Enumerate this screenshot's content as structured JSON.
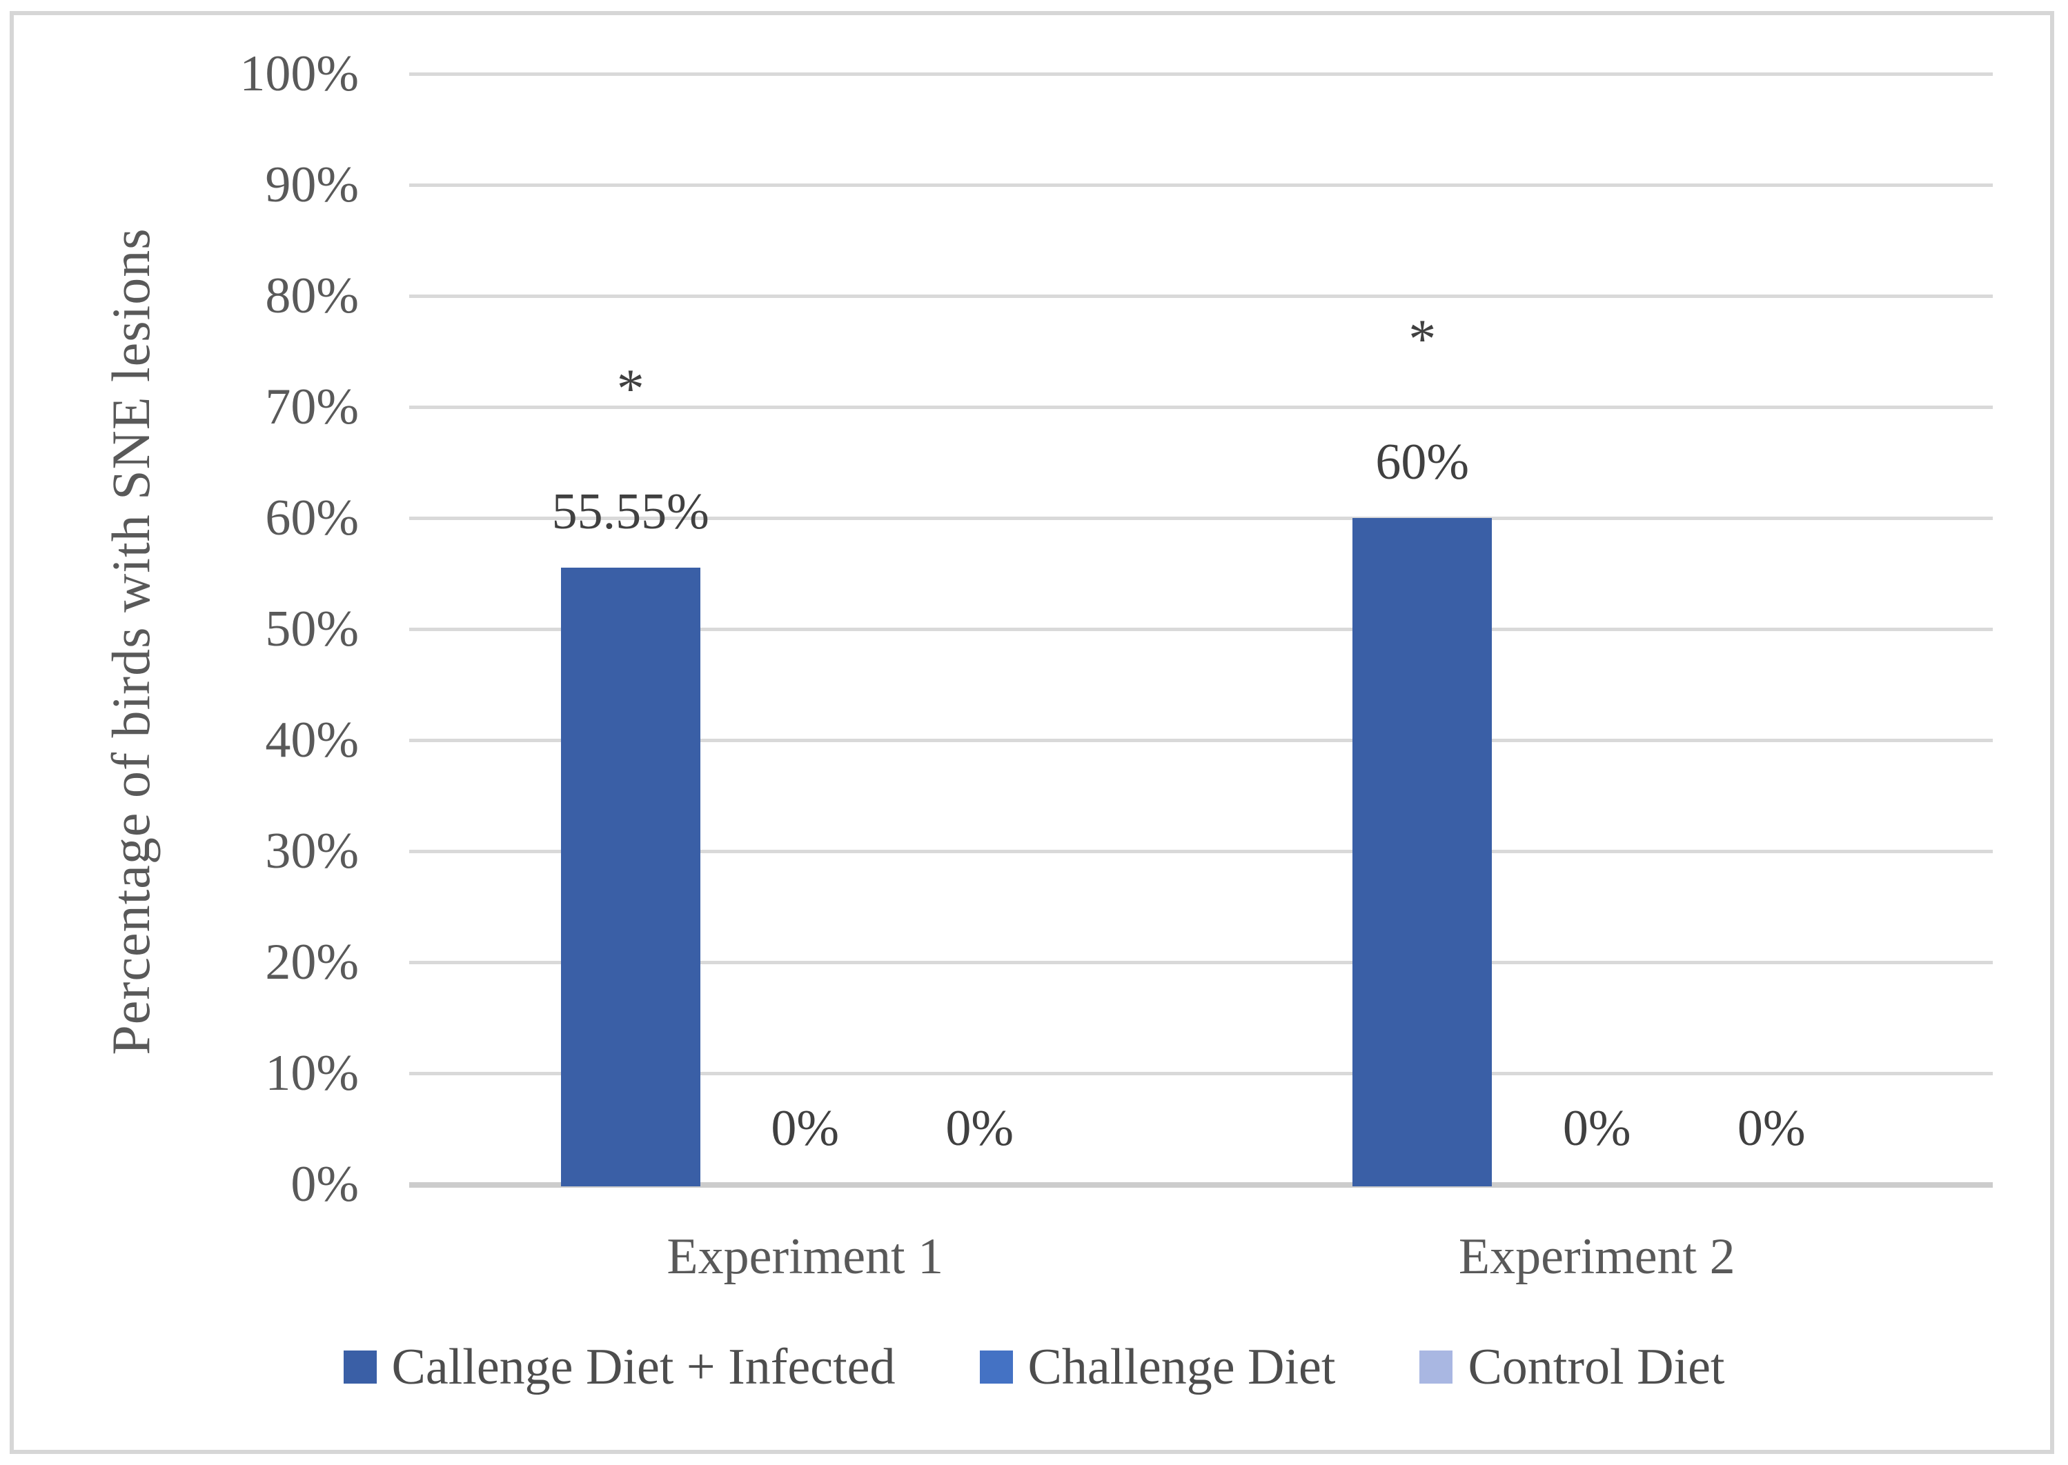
{
  "figure": {
    "kind": "clustered-column-chart",
    "background": "#FFFFFF",
    "border_color": "#D6D6D6"
  },
  "chart_data": {
    "type": "bar",
    "title": "",
    "xlabel": "",
    "ylabel": "Percentage of birds with SNE lesions",
    "categories": [
      "Experiment 1",
      "Experiment 2"
    ],
    "series": [
      {
        "name": "Callenge Diet + Infected",
        "color": "#3A5FA6",
        "values": [
          55.55,
          60
        ],
        "labels": [
          "55.55%",
          "60%"
        ],
        "annotations": [
          "*",
          "*"
        ]
      },
      {
        "name": "Challenge Diet",
        "color": "#4472C4",
        "values": [
          0,
          0
        ],
        "labels": [
          "0%",
          "0%"
        ],
        "annotations": [
          "",
          ""
        ]
      },
      {
        "name": "Control Diet",
        "color": "#A9B7E2",
        "values": [
          0,
          0
        ],
        "labels": [
          "0%",
          "0%"
        ],
        "annotations": [
          "",
          ""
        ]
      }
    ],
    "y_axis": {
      "min": 0,
      "max": 100,
      "step": 10,
      "tick_labels": [
        "0%",
        "10%",
        "20%",
        "30%",
        "40%",
        "50%",
        "60%",
        "70%",
        "80%",
        "90%",
        "100%"
      ]
    },
    "grid": true,
    "gridline_color": "#D9D9D9",
    "axis_line_color": "#CCCCCC",
    "legend_position": "bottom",
    "text_colors": {
      "axis_text": "#595959",
      "data_labels": "#404040",
      "legend_text": "#4D4D4D"
    }
  }
}
